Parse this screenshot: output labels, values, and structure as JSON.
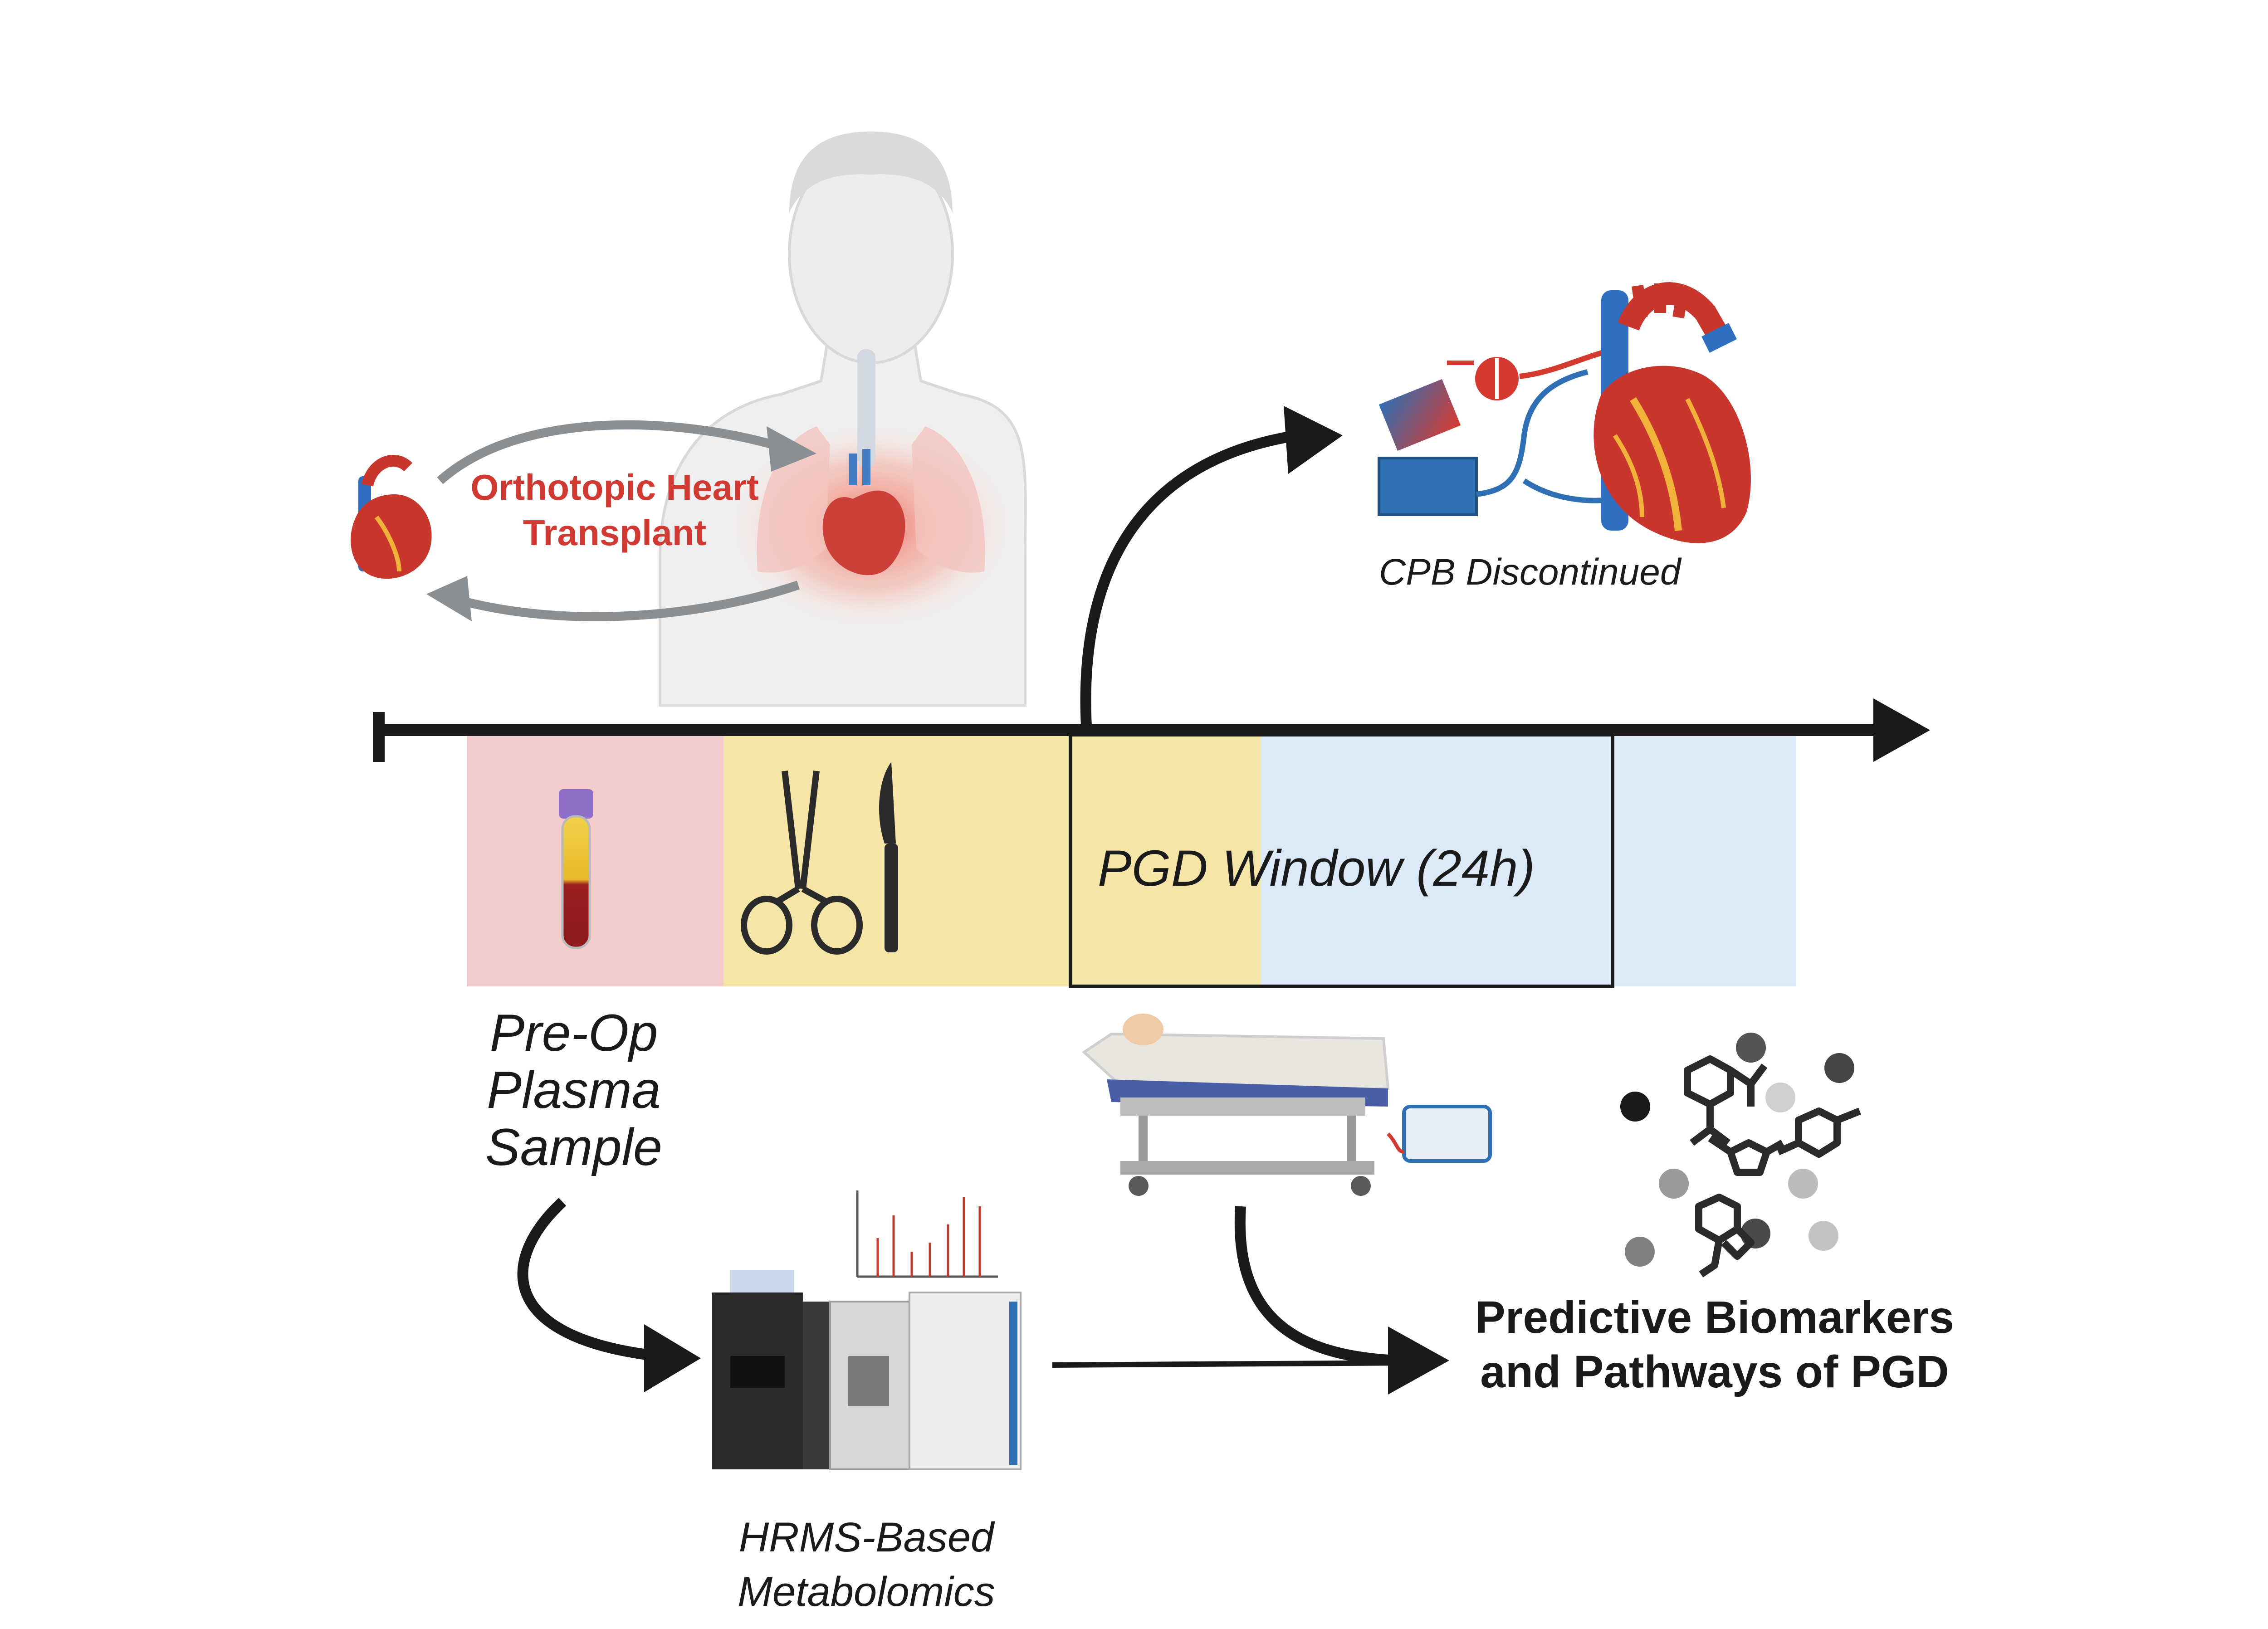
{
  "labels": {
    "transplant_line1": "Orthotopic Heart",
    "transplant_line2": "Transplant",
    "cpb": "CPB Discontinued",
    "pgd_window": "PGD Window (24h)",
    "preop_line1": "Pre-Op",
    "preop_line2": "Plasma",
    "preop_line3": "Sample",
    "hrms_line1": "HRMS-Based",
    "hrms_line2": "Metabolomics",
    "result_line1": "Predictive Biomarkers",
    "result_line2": "and Pathways of PGD"
  },
  "colors": {
    "transplant_text": "#d03a33",
    "preop_band": "#f4cccc",
    "surgery_band": "#f5e6a8",
    "postop_band": "#dce9f7",
    "arrows": "#1a1a1a",
    "grey_arrows": "#8a8f94"
  }
}
